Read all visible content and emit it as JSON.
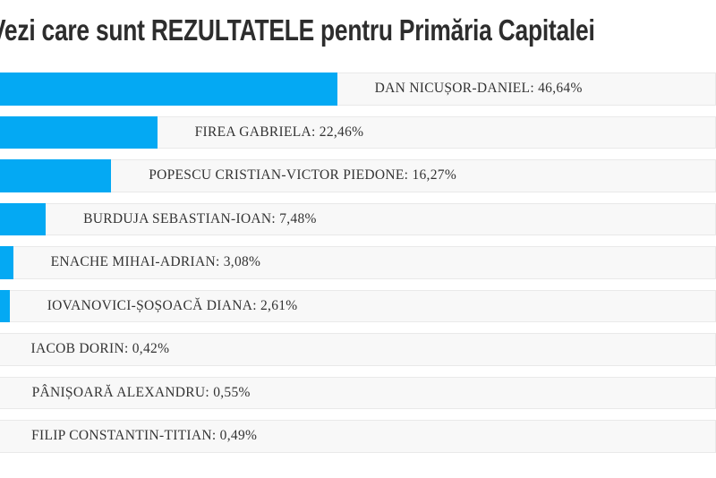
{
  "page": {
    "title": "Vezi care sunt REZULTATELE pentru Primăria Capitalei"
  },
  "chart_data": {
    "type": "bar",
    "orientation": "horizontal",
    "title": "Vezi care sunt REZULTATELE pentru Primăria Capitalei",
    "unit": "%",
    "decimal_separator": ",",
    "categories": [
      "DAN NICUȘOR-DANIEL",
      "FIREA GABRIELA",
      "POPESCU CRISTIAN-VICTOR PIEDONE",
      "BURDUJA SEBASTIAN-IOAN",
      "ENACHE MIHAI-ADRIAN",
      "IOVANOVICI-ȘOȘOACĂ DIANA",
      "IACOB DORIN",
      "PÂNIȘOARĂ ALEXANDRU",
      "FILIP CONSTANTIN-TITIAN"
    ],
    "values": [
      46.64,
      22.46,
      16.27,
      7.48,
      3.08,
      2.61,
      0.42,
      0.55,
      0.49
    ],
    "value_labels": [
      "46,64%",
      "22,46%",
      "16,27%",
      "7,48%",
      "3,08%",
      "2,61%",
      "0,42%",
      "0,55%",
      "0,49%"
    ],
    "label_separator": ": ",
    "xlim": [
      0,
      100
    ],
    "grid": false,
    "legend": false,
    "pixels_per_percent": 8.31,
    "colors": {
      "bar": "#04a9f3",
      "row_background": "#f8f8f8",
      "row_border": "#e9e9e9",
      "label_text": "#333333",
      "title_text": "#2d2d2d"
    }
  }
}
